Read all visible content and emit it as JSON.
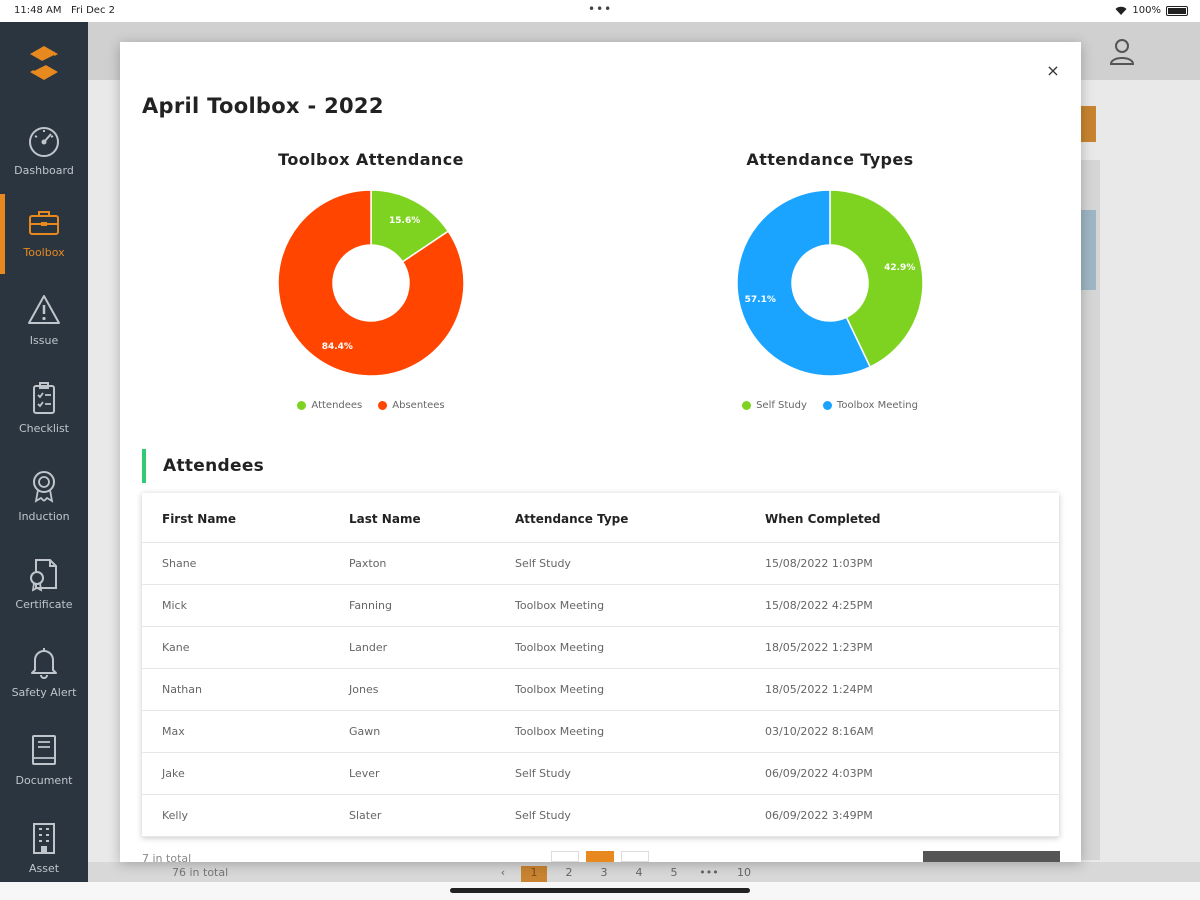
{
  "status_bar": {
    "time": "11:48 AM",
    "date": "Fri Dec 2",
    "dots": "•••",
    "battery": "100%"
  },
  "sidebar": {
    "items": [
      {
        "label": "Dashboard",
        "icon": "dashboard-gauge-icon"
      },
      {
        "label": "Toolbox",
        "icon": "toolbox-icon"
      },
      {
        "label": "Issue",
        "icon": "warning-triangle-icon"
      },
      {
        "label": "Checklist",
        "icon": "clipboard-checklist-icon"
      },
      {
        "label": "Induction",
        "icon": "award-ribbon-icon"
      },
      {
        "label": "Certificate",
        "icon": "certificate-icon"
      },
      {
        "label": "Safety Alert",
        "icon": "bell-icon"
      },
      {
        "label": "Document",
        "icon": "book-icon"
      },
      {
        "label": "Asset",
        "icon": "building-icon"
      }
    ],
    "active_index": 1
  },
  "background": {
    "total_text": "76 in total",
    "pages": [
      "1",
      "2",
      "3",
      "4",
      "5",
      "•••",
      "10"
    ],
    "active_page": "1"
  },
  "modal": {
    "title": "April Toolbox - 2022",
    "close_label": "×",
    "section_title": "Attendees",
    "footer_total": "7 in total"
  },
  "colors": {
    "accent": "#e8891f",
    "green": "#7ed321",
    "red": "#ff4500",
    "blue": "#1aa3ff",
    "sidebar": "#2a3540",
    "section_bar": "#2ecc71"
  },
  "chart_data": [
    {
      "type": "pie",
      "title": "Toolbox Attendance",
      "categories": [
        "Attendees",
        "Absentees"
      ],
      "values": [
        15.6,
        84.4
      ],
      "labels": [
        "15.6%",
        "84.4%"
      ],
      "colors": [
        "#7ed321",
        "#ff4500"
      ],
      "donut": true,
      "legend": "bottom"
    },
    {
      "type": "pie",
      "title": "Attendance Types",
      "categories": [
        "Self Study",
        "Toolbox Meeting"
      ],
      "values": [
        42.9,
        57.1
      ],
      "labels": [
        "42.9%",
        "57.1%"
      ],
      "colors": [
        "#7ed321",
        "#1aa3ff"
      ],
      "donut": true,
      "legend": "bottom"
    }
  ],
  "table": {
    "headers": [
      "First Name",
      "Last Name",
      "Attendance Type",
      "When Completed"
    ],
    "rows": [
      [
        "Shane",
        "Paxton",
        "Self Study",
        "15/08/2022 1:03PM"
      ],
      [
        "Mick",
        "Fanning",
        "Toolbox Meeting",
        "15/08/2022 4:25PM"
      ],
      [
        "Kane",
        "Lander",
        "Toolbox Meeting",
        "18/05/2022 1:23PM"
      ],
      [
        "Nathan",
        "Jones",
        "Toolbox Meeting",
        "18/05/2022 1:24PM"
      ],
      [
        "Max",
        "Gawn",
        "Toolbox Meeting",
        "03/10/2022 8:16AM"
      ],
      [
        "Jake",
        "Lever",
        "Self Study",
        "06/09/2022 4:03PM"
      ],
      [
        "Kelly",
        "Slater",
        "Self Study",
        "06/09/2022 3:49PM"
      ]
    ]
  }
}
